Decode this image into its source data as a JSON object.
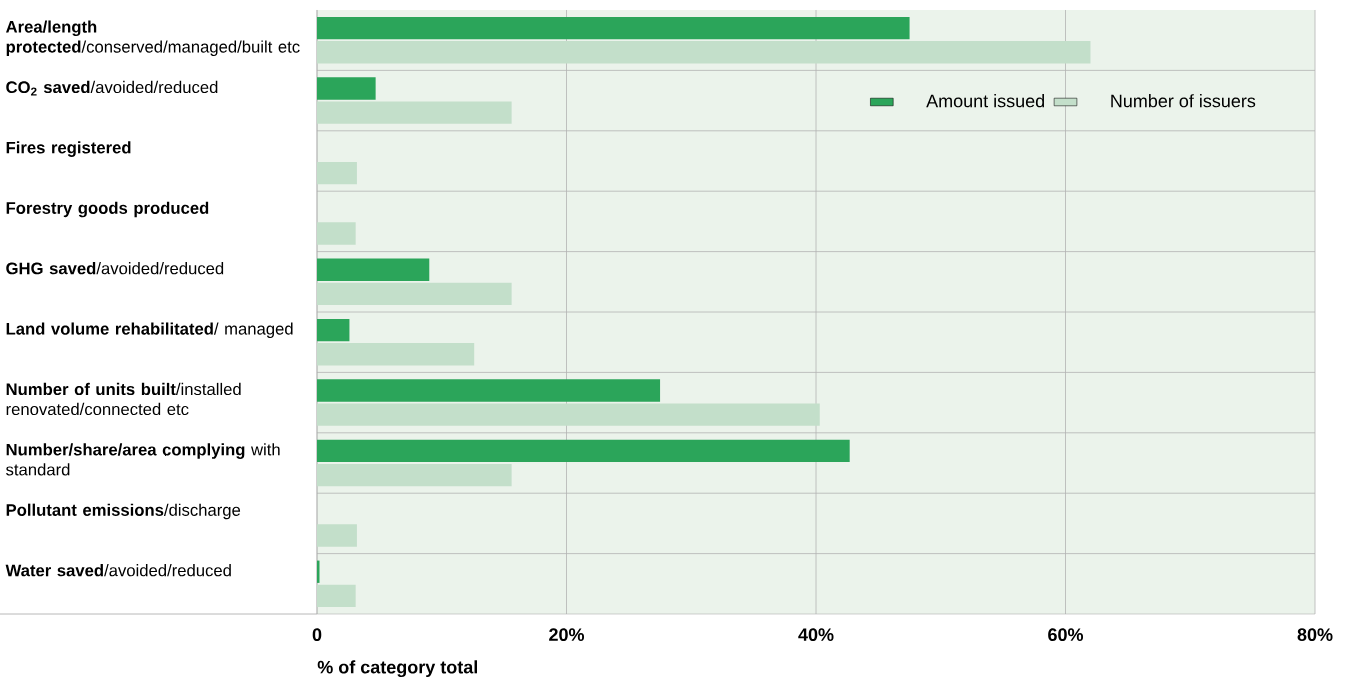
{
  "chart_data": {
    "type": "bar",
    "orientation": "horizontal",
    "xlabel": "% of category total",
    "categories": [
      "**Area/length protected**/conserved/managed/built etc",
      "**CO$_{2}$ saved**/avoided/reduced",
      "**Fires registered**",
      "**Forestry goods produced**",
      "**GHG saved**/avoided/reduced",
      "**Land volume rehabilitated**/ managed",
      "**Number of units built**/installed renovated/connected etc",
      "**Number/share/area complying** with standard",
      "**Pollutant emissions**/discharge",
      "**Water saved**/avoided/reduced"
    ],
    "series": [
      {
        "name": "Amount issued",
        "color": "#2ba55a",
        "values": [
          47.5,
          4.7,
          null,
          null,
          9.0,
          2.6,
          27.5,
          42.7,
          null,
          0.2
        ]
      },
      {
        "name": "Number of issuers",
        "color": "#c3dfca",
        "values": [
          62.0,
          15.6,
          3.2,
          3.1,
          15.6,
          12.6,
          40.3,
          15.6,
          3.2,
          3.1
        ]
      }
    ],
    "xlim": [
      0,
      80
    ],
    "xticks": [
      0,
      {
        "value": 20,
        "label": "20%"
      },
      {
        "value": 40,
        "label": "40%"
      },
      {
        "value": 60,
        "label": "60%"
      },
      {
        "value": 80,
        "label": "80%"
      }
    ],
    "grid": "x",
    "legend": "top right"
  }
}
